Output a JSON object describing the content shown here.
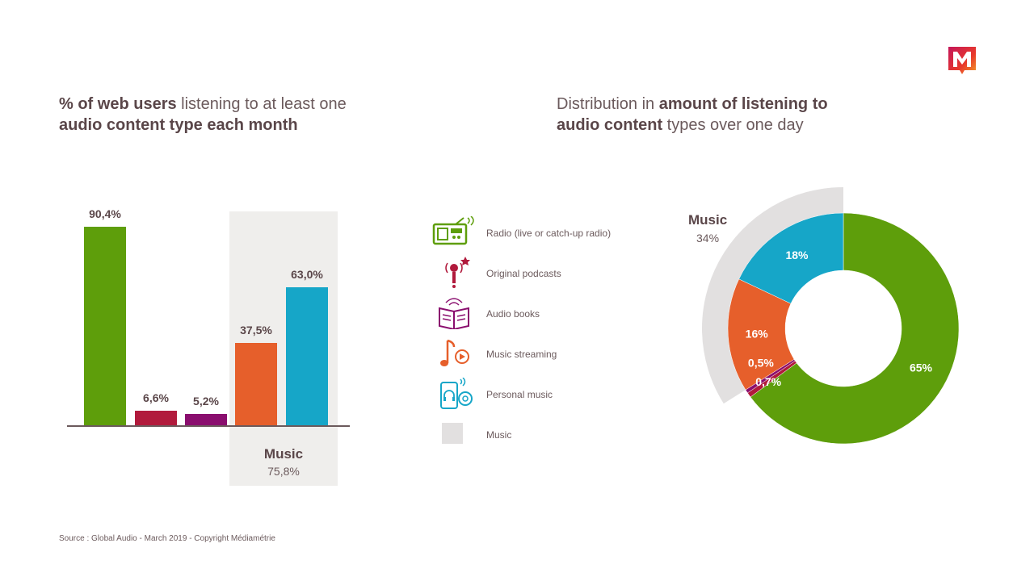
{
  "logo": {
    "letter": "M",
    "colors": [
      "#e8392b",
      "#c4165a",
      "#f39c2a"
    ]
  },
  "left_title": {
    "bold1": "% of web users",
    "text1": " listening to at least one",
    "bold2": "audio content type each month"
  },
  "right_title": {
    "text1": "Distribution in ",
    "bold1": "amount of listening to",
    "bold2": "audio content",
    "text2": " types over one day"
  },
  "legend": [
    {
      "label": "Radio (live or catch-up radio)",
      "icon": "radio-icon",
      "color": "#5e9e0b"
    },
    {
      "label": "Original podcasts",
      "icon": "microphone-icon",
      "color": "#b11a3c"
    },
    {
      "label": "Audio books",
      "icon": "audio-book-icon",
      "color": "#8a0e6e"
    },
    {
      "label": "Music streaming",
      "icon": "music-note-play-icon",
      "color": "#e65f2b"
    },
    {
      "label": "Personal music",
      "icon": "phone-headphones-icon",
      "color": "#16a6c8"
    },
    {
      "label": "Music",
      "icon": "music-group-swatch",
      "color": "#e2e0e0"
    }
  ],
  "chart_data": [
    {
      "type": "bar",
      "categories": [
        "Radio (live or catch-up radio)",
        "Original podcasts",
        "Audio books",
        "Music streaming",
        "Personal music"
      ],
      "values": [
        90.4,
        6.6,
        5.2,
        37.5,
        63.0
      ],
      "value_labels": [
        "90,4%",
        "6,6%",
        "5,2%",
        "37,5%",
        "63,0%"
      ],
      "colors": [
        "#5e9e0b",
        "#b11a3c",
        "#8a0e6e",
        "#e65f2b",
        "#16a6c8"
      ],
      "ylim": [
        0,
        100
      ],
      "group": {
        "label": "Music",
        "value": 75.8,
        "value_label": "75,8%",
        "members": [
          "Music streaming",
          "Personal music"
        ],
        "color": "#efeeec"
      }
    },
    {
      "type": "pie",
      "style": "donut",
      "slices": [
        {
          "label": "Radio (live or catch-up radio)",
          "value": 65,
          "value_label": "65%",
          "color": "#5e9e0b"
        },
        {
          "label": "Original podcasts",
          "value": 0.7,
          "value_label": "0,7%",
          "color": "#b11a3c"
        },
        {
          "label": "Audio books",
          "value": 0.5,
          "value_label": "0,5%",
          "color": "#8a0e6e"
        },
        {
          "label": "Music streaming",
          "value": 16,
          "value_label": "16%",
          "color": "#e65f2b"
        },
        {
          "label": "Personal music",
          "value": 18,
          "value_label": "18%",
          "color": "#16a6c8"
        }
      ],
      "group": {
        "label": "Music",
        "value": 34,
        "value_label": "34%",
        "members": [
          "Music streaming",
          "Personal music"
        ],
        "color": "#e2e0e0"
      }
    }
  ],
  "source": "Source : Global Audio - March 2019 - Copyright Médiamétrie"
}
